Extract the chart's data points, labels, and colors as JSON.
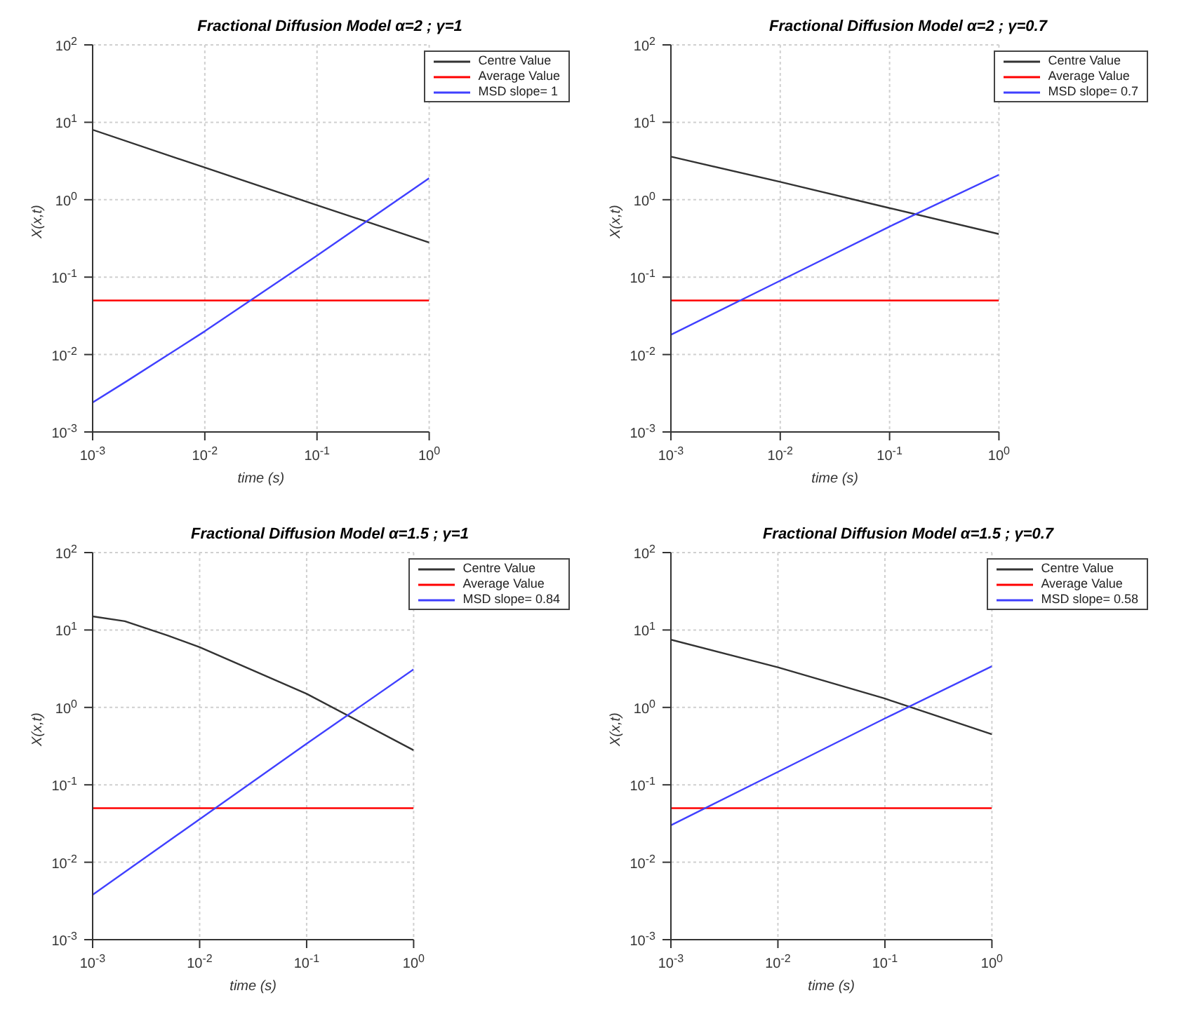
{
  "chart_data": [
    {
      "type": "line",
      "title": "Fractional Diffusion Model α=2 ; γ=1",
      "xlabel": "time (s)",
      "ylabel": "X(x,t)",
      "log": "xy",
      "grid": true,
      "legend": "top right",
      "xlim": [
        0.001,
        1
      ],
      "ylim": [
        0.001,
        100
      ],
      "xticks": [
        {
          "value": 0.001,
          "label": "10$^{-3}$"
        },
        {
          "value": 0.01,
          "label": "10$^{-2}$"
        },
        {
          "value": 0.1,
          "label": "10$^{-1}$"
        },
        {
          "value": 1,
          "label": "10$^{0}$"
        }
      ],
      "yticks": [
        {
          "value": 0.001,
          "label": "10$^{-3}$"
        },
        {
          "value": 0.01,
          "label": "10$^{-2}$"
        },
        {
          "value": 0.1,
          "label": "10$^{-1}$"
        },
        {
          "value": 1,
          "label": "10$^{0}$"
        },
        {
          "value": 10,
          "label": "10$^{1}$"
        },
        {
          "value": 100,
          "label": "10$^{2}$"
        }
      ],
      "series": [
        {
          "name": "Centre Value",
          "color": "#333333",
          "x": [
            0.001,
            0.01,
            0.1,
            1
          ],
          "values": [
            8,
            2.6,
            0.85,
            0.28
          ]
        },
        {
          "name": "Average Value",
          "color": "#ff0000",
          "x": [
            0.001,
            1
          ],
          "values": [
            0.05,
            0.05
          ]
        },
        {
          "name": "MSD slope= 1",
          "color": "#4040ff",
          "x": [
            0.001,
            0.002,
            0.01,
            0.1,
            1
          ],
          "values": [
            0.0024,
            0.0045,
            0.02,
            0.19,
            1.9
          ]
        }
      ]
    },
    {
      "type": "line",
      "title": "Fractional Diffusion Model α=2 ; γ=0.7",
      "xlabel": "time (s)",
      "ylabel": "X(x,t)",
      "log": "xy",
      "grid": true,
      "legend": "top right",
      "xlim": [
        0.001,
        1
      ],
      "ylim": [
        0.001,
        100
      ],
      "xticks": [
        {
          "value": 0.001,
          "label": "10$^{-3}$"
        },
        {
          "value": 0.01,
          "label": "10$^{-2}$"
        },
        {
          "value": 0.1,
          "label": "10$^{-1}$"
        },
        {
          "value": 1,
          "label": "10$^{0}$"
        }
      ],
      "yticks": [
        {
          "value": 0.001,
          "label": "10$^{-3}$"
        },
        {
          "value": 0.01,
          "label": "10$^{-2}$"
        },
        {
          "value": 0.1,
          "label": "10$^{-1}$"
        },
        {
          "value": 1,
          "label": "10$^{0}$"
        },
        {
          "value": 10,
          "label": "10$^{1}$"
        },
        {
          "value": 100,
          "label": "10$^{2}$"
        }
      ],
      "series": [
        {
          "name": "Centre Value",
          "color": "#333333",
          "x": [
            0.001,
            0.01,
            0.1,
            1
          ],
          "values": [
            3.6,
            1.7,
            0.78,
            0.36
          ]
        },
        {
          "name": "Average Value",
          "color": "#ff0000",
          "x": [
            0.001,
            1
          ],
          "values": [
            0.05,
            0.05
          ]
        },
        {
          "name": "MSD slope= 0.7",
          "color": "#4040ff",
          "x": [
            0.001,
            0.01,
            0.1,
            1
          ],
          "values": [
            0.018,
            0.09,
            0.45,
            2.1
          ]
        }
      ]
    },
    {
      "type": "line",
      "title": "Fractional Diffusion Model α=1.5 ; γ=1",
      "xlabel": "time (s)",
      "ylabel": "X(x,t)",
      "log": "xy",
      "grid": true,
      "legend": "top right",
      "xlim": [
        0.001,
        1
      ],
      "ylim": [
        0.001,
        100
      ],
      "xticks": [
        {
          "value": 0.001,
          "label": "10$^{-3}$"
        },
        {
          "value": 0.01,
          "label": "10$^{-2}$"
        },
        {
          "value": 0.1,
          "label": "10$^{-1}$"
        },
        {
          "value": 1,
          "label": "10$^{0}$"
        }
      ],
      "yticks": [
        {
          "value": 0.001,
          "label": "10$^{-3}$"
        },
        {
          "value": 0.01,
          "label": "10$^{-2}$"
        },
        {
          "value": 0.1,
          "label": "10$^{-1}$"
        },
        {
          "value": 1,
          "label": "10$^{0}$"
        },
        {
          "value": 10,
          "label": "10$^{1}$"
        },
        {
          "value": 100,
          "label": "10$^{2}$"
        }
      ],
      "series": [
        {
          "name": "Centre Value",
          "color": "#333333",
          "x": [
            0.001,
            0.002,
            0.005,
            0.01,
            0.1,
            1
          ],
          "values": [
            15,
            13,
            8.5,
            6,
            1.5,
            0.28
          ]
        },
        {
          "name": "Average Value",
          "color": "#ff0000",
          "x": [
            0.001,
            1
          ],
          "values": [
            0.05,
            0.05
          ]
        },
        {
          "name": "MSD slope= 0.84",
          "color": "#4040ff",
          "x": [
            0.001,
            0.01,
            0.1,
            1
          ],
          "values": [
            0.0038,
            0.036,
            0.34,
            3.1
          ]
        }
      ]
    },
    {
      "type": "line",
      "title": "Fractional Diffusion Model α=1.5 ; γ=0.7",
      "xlabel": "time (s)",
      "ylabel": "X(x,t)",
      "log": "xy",
      "grid": true,
      "legend": "top right",
      "xlim": [
        0.001,
        1
      ],
      "ylim": [
        0.001,
        100
      ],
      "xticks": [
        {
          "value": 0.001,
          "label": "10$^{-3}$"
        },
        {
          "value": 0.01,
          "label": "10$^{-2}$"
        },
        {
          "value": 0.1,
          "label": "10$^{-1}$"
        },
        {
          "value": 1,
          "label": "10$^{0}$"
        }
      ],
      "yticks": [
        {
          "value": 0.001,
          "label": "10$^{-3}$"
        },
        {
          "value": 0.01,
          "label": "10$^{-2}$"
        },
        {
          "value": 0.1,
          "label": "10$^{-1}$"
        },
        {
          "value": 1,
          "label": "10$^{0}$"
        },
        {
          "value": 10,
          "label": "10$^{1}$"
        },
        {
          "value": 100,
          "label": "10$^{2}$"
        }
      ],
      "series": [
        {
          "name": "Centre Value",
          "color": "#333333",
          "x": [
            0.001,
            0.01,
            0.1,
            1
          ],
          "values": [
            7.5,
            3.3,
            1.3,
            0.45
          ]
        },
        {
          "name": "Average Value",
          "color": "#ff0000",
          "x": [
            0.001,
            1
          ],
          "values": [
            0.05,
            0.05
          ]
        },
        {
          "name": "MSD slope= 0.58",
          "color": "#4040ff",
          "x": [
            0.001,
            0.01,
            0.1,
            1
          ],
          "values": [
            0.03,
            0.147,
            0.72,
            3.4
          ]
        }
      ]
    }
  ]
}
